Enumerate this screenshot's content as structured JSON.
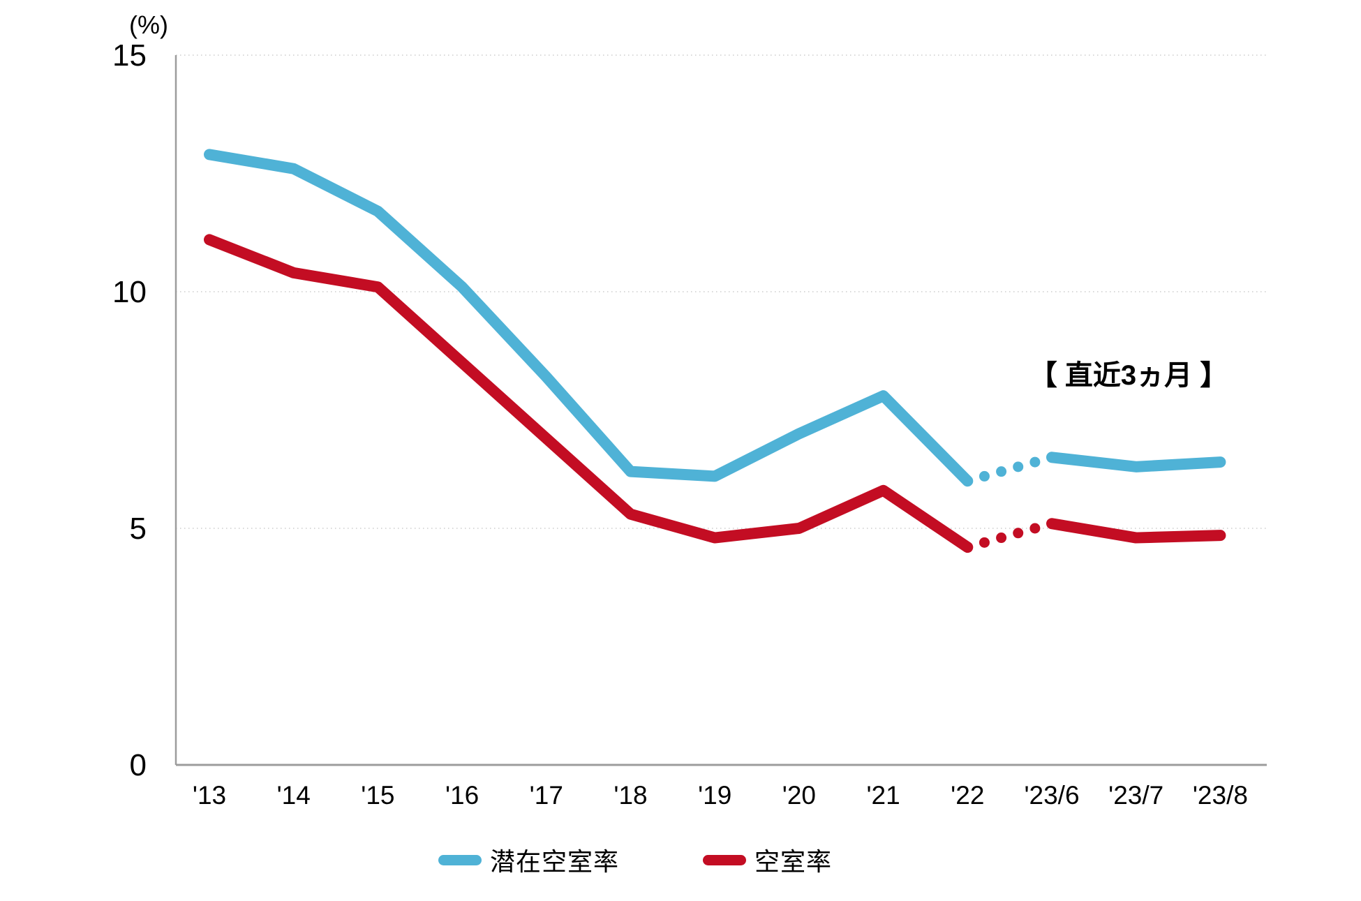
{
  "chart_data": {
    "type": "line",
    "title": "",
    "unit_label": "(%)",
    "categories": [
      "'13",
      "'14",
      "'15",
      "'16",
      "'17",
      "'18",
      "'19",
      "'20",
      "'21",
      "'22",
      "'23/6",
      "'23/7",
      "'23/8"
    ],
    "series": [
      {
        "name": "潜在空室率",
        "color": "#4FB2D6",
        "values": [
          12.9,
          12.6,
          11.7,
          10.1,
          8.2,
          6.2,
          6.1,
          7.0,
          7.8,
          6.0,
          6.5,
          6.3,
          6.4
        ]
      },
      {
        "name": "空室率",
        "color": "#C30D23",
        "values": [
          11.1,
          10.4,
          10.1,
          8.5,
          6.9,
          5.3,
          4.8,
          5.0,
          5.8,
          4.6,
          5.1,
          4.8,
          4.85
        ]
      }
    ],
    "ylim": [
      0,
      15
    ],
    "yticks": [
      0,
      5,
      10,
      15
    ],
    "grid": "horizontal-dotted",
    "legend_position": "bottom-center",
    "annotation": {
      "text": "【 直近3ヵ月 】"
    },
    "dotted_gap": {
      "from_index": 9,
      "to_index": 10,
      "dots": 4
    }
  },
  "colors": {
    "axis": "#9C9C9C",
    "gridline": "#D9D9D9",
    "text": "#000000",
    "background": "#FFFFFF"
  }
}
